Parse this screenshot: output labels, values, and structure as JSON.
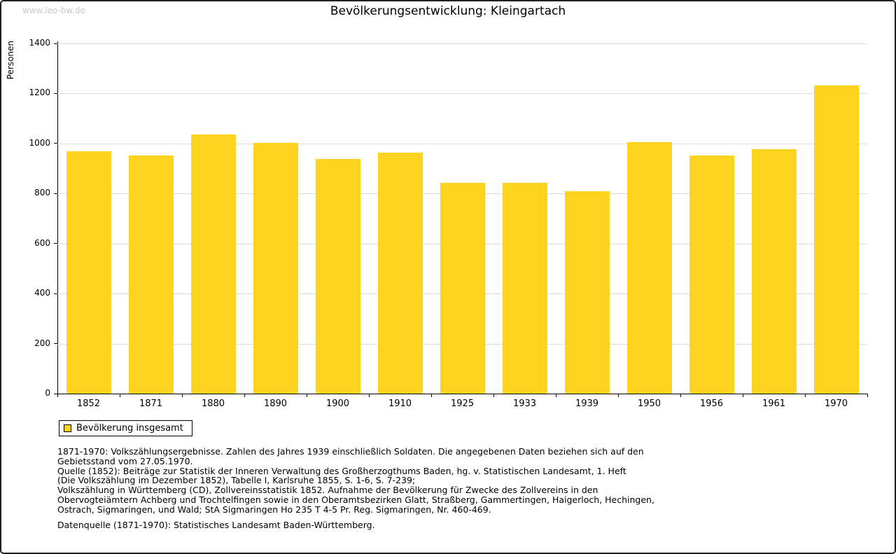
{
  "page": {
    "watermark": "www.leo-bw.de",
    "title": "Bevölkerungsentwicklung: Kleingartach"
  },
  "chart_data": {
    "type": "bar",
    "title": "Bevölkerungsentwicklung: Kleingartach",
    "xlabel": "",
    "ylabel": "Personen",
    "categories": [
      "1852",
      "1871",
      "1880",
      "1890",
      "1900",
      "1910",
      "1925",
      "1933",
      "1939",
      "1950",
      "1956",
      "1961",
      "1970"
    ],
    "values": [
      970,
      953,
      1037,
      1003,
      938,
      962,
      844,
      844,
      809,
      1006,
      952,
      977,
      1233
    ],
    "ylim": [
      0,
      1400
    ],
    "ytick_step": 200,
    "yticks": [
      0,
      200,
      400,
      600,
      800,
      1000,
      1200,
      1400
    ],
    "grid": true,
    "bar_color": "#FFD41E",
    "legend": {
      "position": "bottom-left",
      "entries": [
        "Bevölkerung insgesamt"
      ]
    }
  },
  "footnotes": {
    "lines": [
      "1871-1970: Volkszählungsergebnisse. Zahlen des Jahres 1939 einschließlich Soldaten. Die angegebenen Daten beziehen sich auf den",
      "Gebietsstand vom 27.05.1970.",
      "Quelle (1852): Beiträge zur Statistik der Inneren Verwaltung des Großherzogthums Baden, hg. v. Statistischen Landesamt, 1. Heft",
      "(Die Volkszählung im Dezember 1852), Tabelle I, Karlsruhe 1855, S. 1-6, S. 7-239;",
      "Volkszählung in Württemberg (CD), Zollvereinsstatistik 1852. Aufnahme der Bevölkerung für Zwecke des Zollvereins in den",
      "Obervogteiämtern Achberg und Trochtelfingen sowie in den Oberamtsbezirken Glatt, Straßberg, Gammertingen, Haigerloch, Hechingen,",
      "Ostrach, Sigmaringen, und Wald; StA Sigmaringen Ho 235 T 4-5 Pr. Reg. Sigmaringen, Nr. 460-469."
    ],
    "datasource": "Datenquelle (1871-1970): Statistisches Landesamt Baden-Württemberg."
  }
}
